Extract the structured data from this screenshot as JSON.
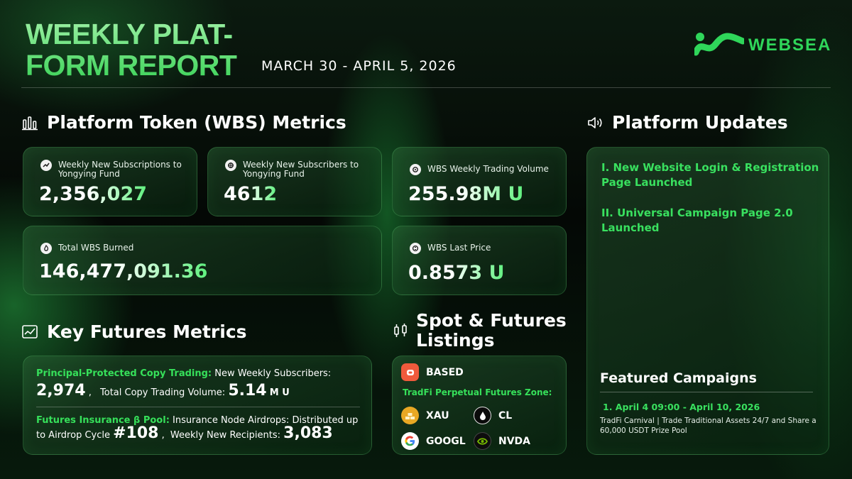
{
  "header": {
    "title_line1": "WEEKLY PLAT-",
    "title_line2": "FORM REPORT",
    "date_range": "MARCH 30 - APRIL 5, 2026",
    "logo_text": "WEBSEA"
  },
  "token_metrics": {
    "section_title": "Platform Token (WBS) Metrics",
    "cards": [
      {
        "label": "Weekly New Subscriptions to Yongying Fund",
        "value": "2,356,027"
      },
      {
        "label": "Weekly New Subscribers to Yongying Fund",
        "value": "4612"
      },
      {
        "label": "WBS Weekly Trading Volume",
        "value": "255.98M U"
      },
      {
        "label": "Total WBS Burned",
        "value": "146,477,091.36"
      },
      {
        "label": "WBS Last Price",
        "value": "0.8573 U"
      }
    ]
  },
  "updates": {
    "section_title": "Platform Updates",
    "items": [
      "I. New Website Login & Registration Page Launched",
      "II. Universal Campaign Page 2.0 Launched"
    ],
    "featured_title": "Featured Campaigns",
    "featured_item_title": "1. April 4 09:00 - April 10, 2026",
    "featured_item_desc": "TradFi Carnival | Trade Traditional Assets 24/7 and Share a 60,000 USDT Prize Pool"
  },
  "futures": {
    "section_title": "Key Futures Metrics",
    "copy_trading_label": "Principal-Protected Copy Trading:",
    "copy_trading_text": "New Weekly Subscribers:",
    "subscribers": "2,974",
    "sep1": ",",
    "volume_label": "Total Copy Trading Volume:",
    "volume_value": "5.14",
    "volume_unit": "M U",
    "insurance_label": "Futures Insurance β Pool:",
    "insurance_text": "Insurance Node Airdrops: Distributed up to Airdrop Cycle",
    "cycle": "#108",
    "sep2": ",",
    "recipients_label": "Weekly New Recipients:",
    "recipients": "3,083"
  },
  "listings": {
    "section_title_line1": "Spot & Futures",
    "section_title_line2": "Listings",
    "spot_token": "BASED",
    "zone_label": "TradFi Perpetual Futures Zone:",
    "tokens": [
      "XAU",
      "CL",
      "GOOGL",
      "NVDA"
    ]
  },
  "colors": {
    "accent": "#36e05a",
    "title_gradient_top": "#9cf0a4",
    "background": "#040805"
  }
}
